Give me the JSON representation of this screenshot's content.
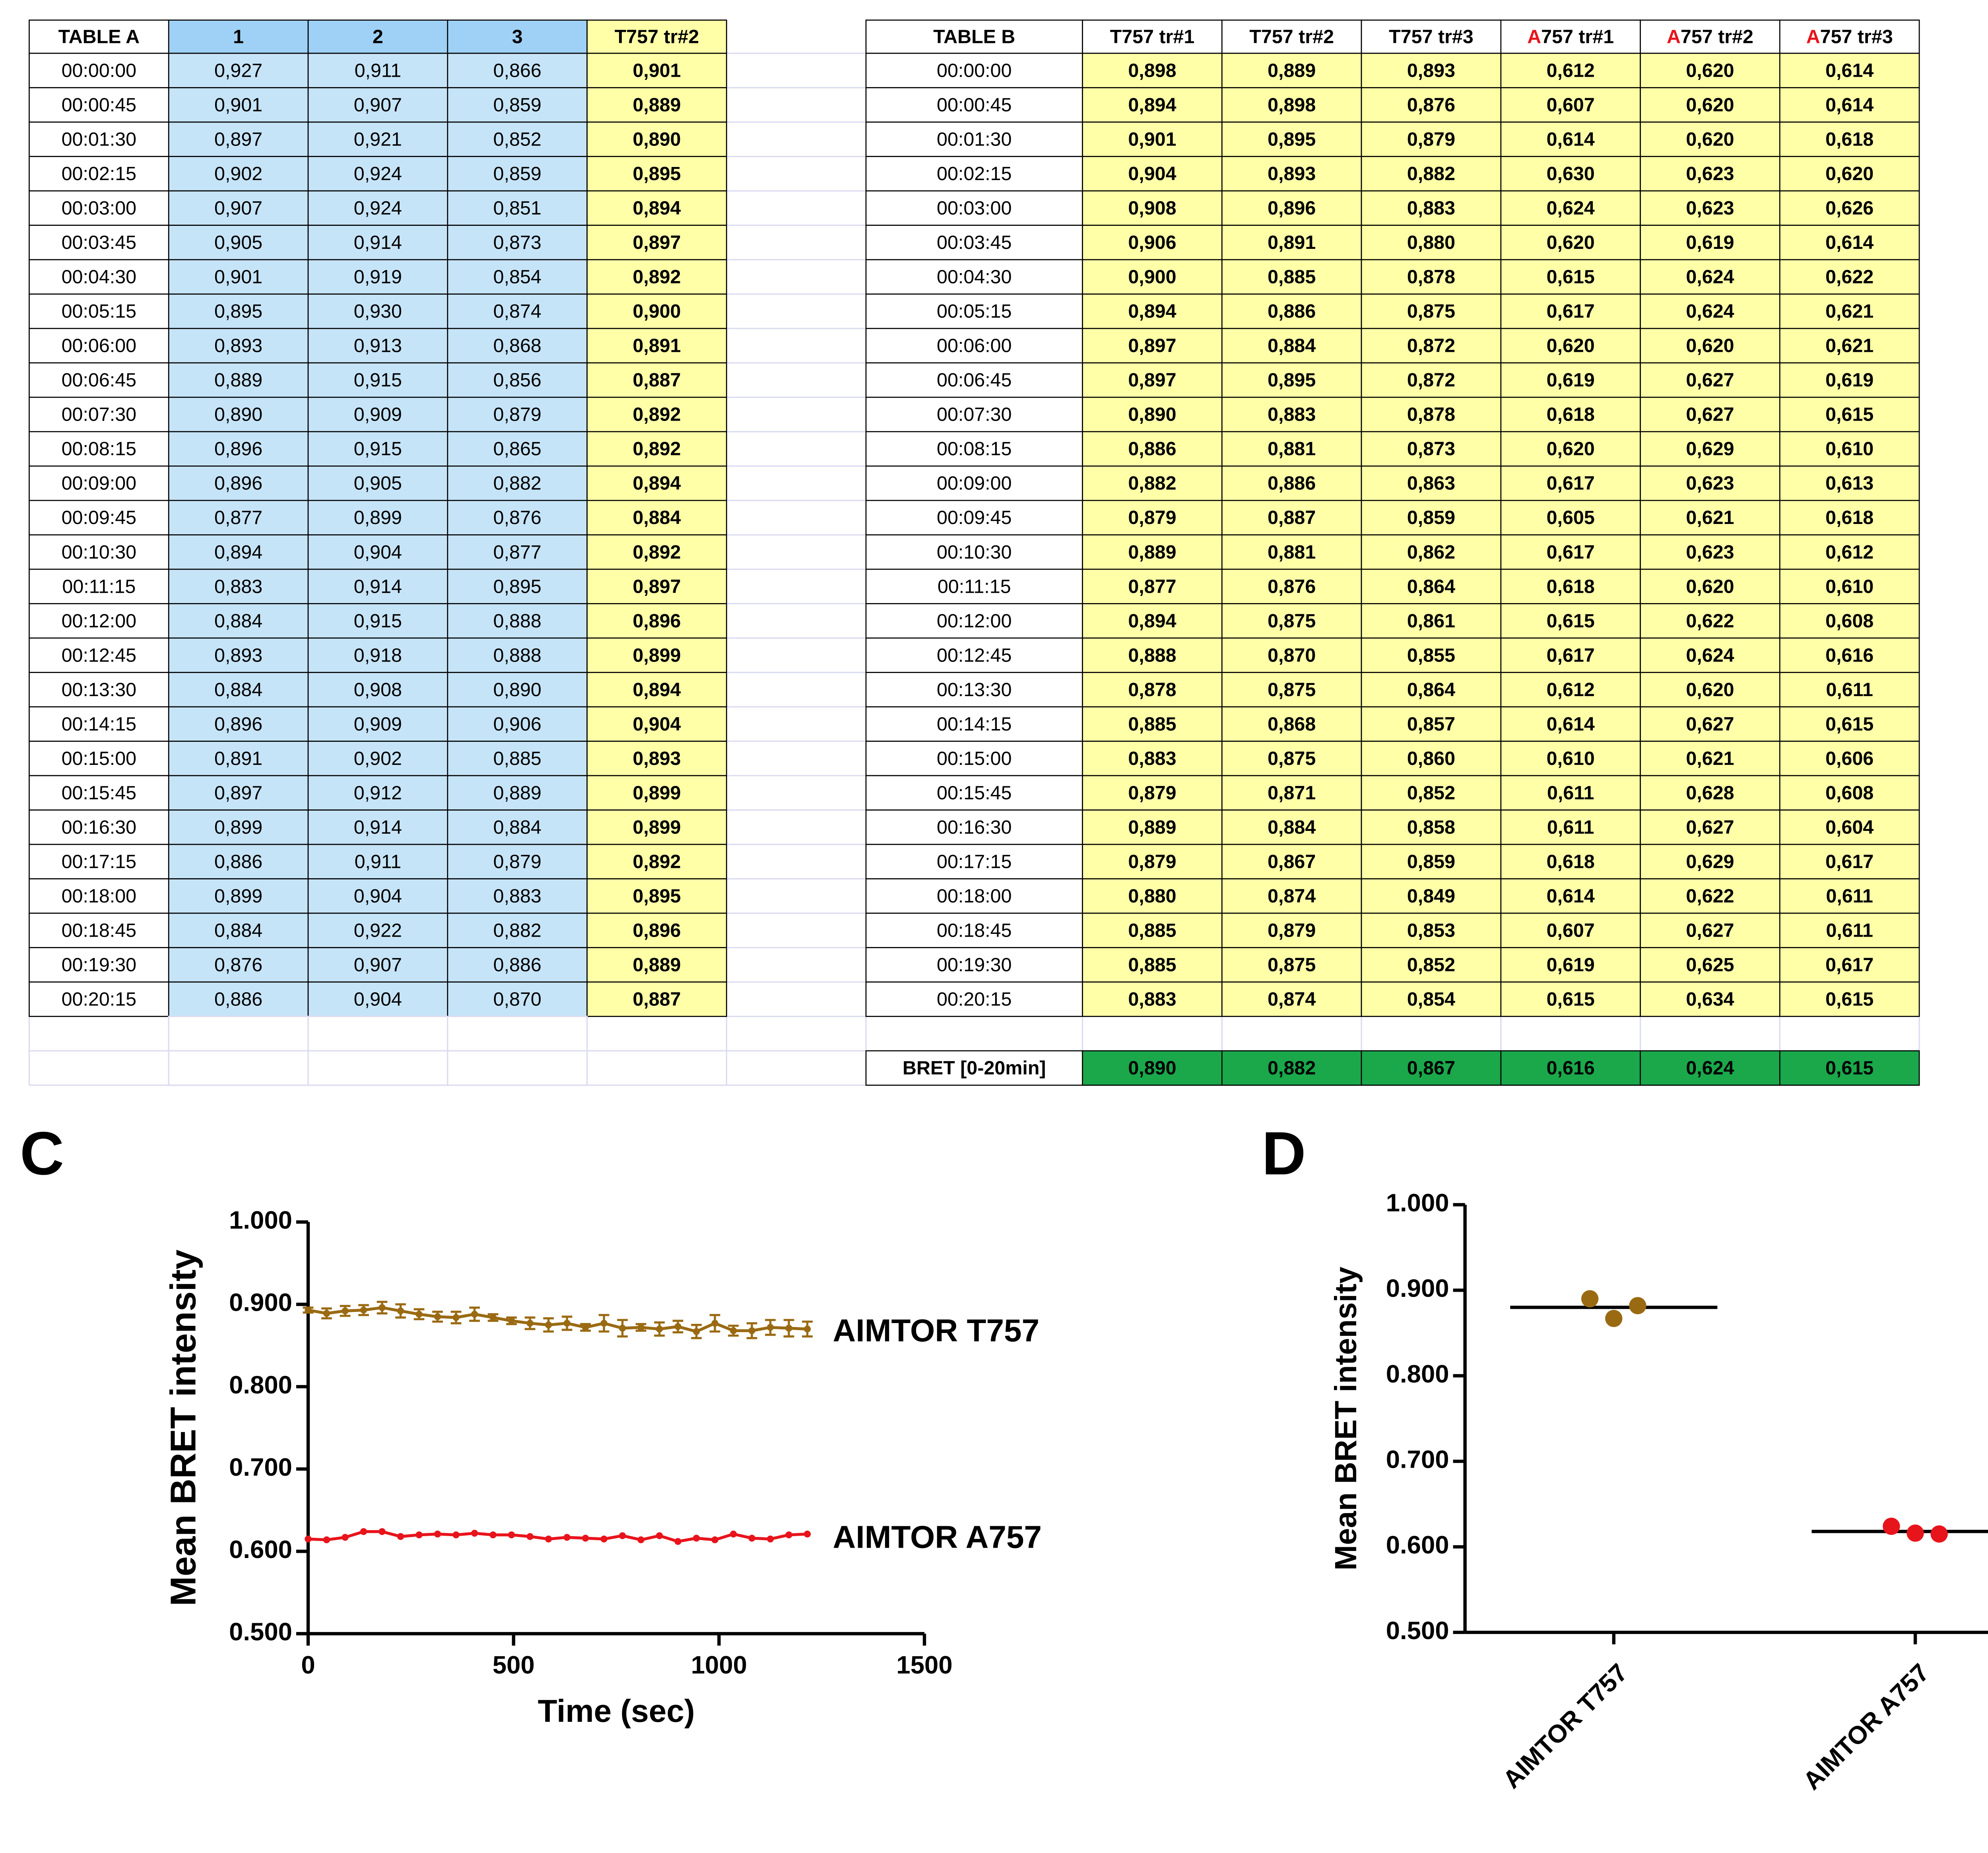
{
  "table_a": {
    "header": [
      "TABLE A",
      "1",
      "2",
      "3",
      "T757 tr#2"
    ],
    "rows": [
      [
        "00:00:00",
        "0,927",
        "0,911",
        "0,866",
        "0,901"
      ],
      [
        "00:00:45",
        "0,901",
        "0,907",
        "0,859",
        "0,889"
      ],
      [
        "00:01:30",
        "0,897",
        "0,921",
        "0,852",
        "0,890"
      ],
      [
        "00:02:15",
        "0,902",
        "0,924",
        "0,859",
        "0,895"
      ],
      [
        "00:03:00",
        "0,907",
        "0,924",
        "0,851",
        "0,894"
      ],
      [
        "00:03:45",
        "0,905",
        "0,914",
        "0,873",
        "0,897"
      ],
      [
        "00:04:30",
        "0,901",
        "0,919",
        "0,854",
        "0,892"
      ],
      [
        "00:05:15",
        "0,895",
        "0,930",
        "0,874",
        "0,900"
      ],
      [
        "00:06:00",
        "0,893",
        "0,913",
        "0,868",
        "0,891"
      ],
      [
        "00:06:45",
        "0,889",
        "0,915",
        "0,856",
        "0,887"
      ],
      [
        "00:07:30",
        "0,890",
        "0,909",
        "0,879",
        "0,892"
      ],
      [
        "00:08:15",
        "0,896",
        "0,915",
        "0,865",
        "0,892"
      ],
      [
        "00:09:00",
        "0,896",
        "0,905",
        "0,882",
        "0,894"
      ],
      [
        "00:09:45",
        "0,877",
        "0,899",
        "0,876",
        "0,884"
      ],
      [
        "00:10:30",
        "0,894",
        "0,904",
        "0,877",
        "0,892"
      ],
      [
        "00:11:15",
        "0,883",
        "0,914",
        "0,895",
        "0,897"
      ],
      [
        "00:12:00",
        "0,884",
        "0,915",
        "0,888",
        "0,896"
      ],
      [
        "00:12:45",
        "0,893",
        "0,918",
        "0,888",
        "0,899"
      ],
      [
        "00:13:30",
        "0,884",
        "0,908",
        "0,890",
        "0,894"
      ],
      [
        "00:14:15",
        "0,896",
        "0,909",
        "0,906",
        "0,904"
      ],
      [
        "00:15:00",
        "0,891",
        "0,902",
        "0,885",
        "0,893"
      ],
      [
        "00:15:45",
        "0,897",
        "0,912",
        "0,889",
        "0,899"
      ],
      [
        "00:16:30",
        "0,899",
        "0,914",
        "0,884",
        "0,899"
      ],
      [
        "00:17:15",
        "0,886",
        "0,911",
        "0,879",
        "0,892"
      ],
      [
        "00:18:00",
        "0,899",
        "0,904",
        "0,883",
        "0,895"
      ],
      [
        "00:18:45",
        "0,884",
        "0,922",
        "0,882",
        "0,896"
      ],
      [
        "00:19:30",
        "0,876",
        "0,907",
        "0,886",
        "0,889"
      ],
      [
        "00:20:15",
        "0,886",
        "0,904",
        "0,870",
        "0,887"
      ]
    ]
  },
  "table_b": {
    "header": [
      "TABLE B",
      "T757 tr#1",
      "T757 tr#2",
      "T757 tr#3",
      "A757 tr#1",
      "A757 tr#2",
      "A757 tr#3"
    ],
    "rows": [
      [
        "00:00:00",
        "0,898",
        "0,889",
        "0,893",
        "0,612",
        "0,620",
        "0,614"
      ],
      [
        "00:00:45",
        "0,894",
        "0,898",
        "0,876",
        "0,607",
        "0,620",
        "0,614"
      ],
      [
        "00:01:30",
        "0,901",
        "0,895",
        "0,879",
        "0,614",
        "0,620",
        "0,618"
      ],
      [
        "00:02:15",
        "0,904",
        "0,893",
        "0,882",
        "0,630",
        "0,623",
        "0,620"
      ],
      [
        "00:03:00",
        "0,908",
        "0,896",
        "0,883",
        "0,624",
        "0,623",
        "0,626"
      ],
      [
        "00:03:45",
        "0,906",
        "0,891",
        "0,880",
        "0,620",
        "0,619",
        "0,614"
      ],
      [
        "00:04:30",
        "0,900",
        "0,885",
        "0,878",
        "0,615",
        "0,624",
        "0,622"
      ],
      [
        "00:05:15",
        "0,894",
        "0,886",
        "0,875",
        "0,617",
        "0,624",
        "0,621"
      ],
      [
        "00:06:00",
        "0,897",
        "0,884",
        "0,872",
        "0,620",
        "0,620",
        "0,621"
      ],
      [
        "00:06:45",
        "0,897",
        "0,895",
        "0,872",
        "0,619",
        "0,627",
        "0,619"
      ],
      [
        "00:07:30",
        "0,890",
        "0,883",
        "0,878",
        "0,618",
        "0,627",
        "0,615"
      ],
      [
        "00:08:15",
        "0,886",
        "0,881",
        "0,873",
        "0,620",
        "0,629",
        "0,610"
      ],
      [
        "00:09:00",
        "0,882",
        "0,886",
        "0,863",
        "0,617",
        "0,623",
        "0,613"
      ],
      [
        "00:09:45",
        "0,879",
        "0,887",
        "0,859",
        "0,605",
        "0,621",
        "0,618"
      ],
      [
        "00:10:30",
        "0,889",
        "0,881",
        "0,862",
        "0,617",
        "0,623",
        "0,612"
      ],
      [
        "00:11:15",
        "0,877",
        "0,876",
        "0,864",
        "0,618",
        "0,620",
        "0,610"
      ],
      [
        "00:12:00",
        "0,894",
        "0,875",
        "0,861",
        "0,615",
        "0,622",
        "0,608"
      ],
      [
        "00:12:45",
        "0,888",
        "0,870",
        "0,855",
        "0,617",
        "0,624",
        "0,616"
      ],
      [
        "00:13:30",
        "0,878",
        "0,875",
        "0,864",
        "0,612",
        "0,620",
        "0,611"
      ],
      [
        "00:14:15",
        "0,885",
        "0,868",
        "0,857",
        "0,614",
        "0,627",
        "0,615"
      ],
      [
        "00:15:00",
        "0,883",
        "0,875",
        "0,860",
        "0,610",
        "0,621",
        "0,606"
      ],
      [
        "00:15:45",
        "0,879",
        "0,871",
        "0,852",
        "0,611",
        "0,628",
        "0,608"
      ],
      [
        "00:16:30",
        "0,889",
        "0,884",
        "0,858",
        "0,611",
        "0,627",
        "0,604"
      ],
      [
        "00:17:15",
        "0,879",
        "0,867",
        "0,859",
        "0,618",
        "0,629",
        "0,617"
      ],
      [
        "00:18:00",
        "0,880",
        "0,874",
        "0,849",
        "0,614",
        "0,622",
        "0,611"
      ],
      [
        "00:18:45",
        "0,885",
        "0,879",
        "0,853",
        "0,607",
        "0,627",
        "0,611"
      ],
      [
        "00:19:30",
        "0,885",
        "0,875",
        "0,852",
        "0,619",
        "0,625",
        "0,617"
      ],
      [
        "00:20:15",
        "0,883",
        "0,874",
        "0,854",
        "0,615",
        "0,634",
        "0,615"
      ]
    ],
    "footer": [
      "BRET [0-20min]",
      "0,890",
      "0,882",
      "0,867",
      "0,616",
      "0,624",
      "0,615"
    ]
  },
  "chart_data": [
    {
      "type": "line",
      "label": "C",
      "x_label": "Time (sec)",
      "y_label": "Mean BRET intensity",
      "x": [
        0,
        45,
        90,
        135,
        180,
        225,
        270,
        315,
        360,
        405,
        450,
        495,
        540,
        585,
        630,
        675,
        720,
        765,
        810,
        855,
        900,
        945,
        990,
        1035,
        1080,
        1125,
        1170,
        1215
      ],
      "xlim": [
        0,
        1500
      ],
      "xticks": [
        0,
        500,
        1000,
        1500
      ],
      "ylim": [
        0.5,
        1.0
      ],
      "yticks": [
        {
          "value": 0.5,
          "label": "0.500"
        },
        {
          "value": 0.6,
          "label": "0.600"
        },
        {
          "value": 0.7,
          "label": "0.700"
        },
        {
          "value": 0.8,
          "label": "0.800"
        },
        {
          "value": 0.9,
          "label": "0.900"
        },
        {
          "value": 1.0,
          "label": "1.000"
        }
      ],
      "series": [
        {
          "name": "AIMTOR T757",
          "color": "#9a6a12",
          "values": [
            0.893,
            0.889,
            0.892,
            0.893,
            0.896,
            0.892,
            0.888,
            0.885,
            0.884,
            0.888,
            0.884,
            0.88,
            0.877,
            0.875,
            0.877,
            0.872,
            0.877,
            0.871,
            0.872,
            0.87,
            0.873,
            0.867,
            0.877,
            0.868,
            0.868,
            0.872,
            0.871,
            0.87
          ],
          "errors": [
            0.003,
            0.006,
            0.006,
            0.006,
            0.007,
            0.008,
            0.006,
            0.006,
            0.007,
            0.008,
            0.004,
            0.004,
            0.007,
            0.008,
            0.008,
            0.004,
            0.01,
            0.01,
            0.004,
            0.008,
            0.007,
            0.008,
            0.01,
            0.006,
            0.009,
            0.009,
            0.01,
            0.009
          ]
        },
        {
          "name": "AIMTOR A757",
          "color": "#e8141c",
          "values": [
            0.615,
            0.614,
            0.617,
            0.624,
            0.624,
            0.618,
            0.62,
            0.621,
            0.62,
            0.622,
            0.62,
            0.62,
            0.618,
            0.615,
            0.617,
            0.616,
            0.615,
            0.619,
            0.614,
            0.619,
            0.612,
            0.616,
            0.614,
            0.621,
            0.616,
            0.615,
            0.62,
            0.621
          ]
        }
      ]
    },
    {
      "type": "dot",
      "label": "D",
      "y_label": "Mean BRET intensity",
      "categories": [
        "AIMTOR T757",
        "AIMTOR A757"
      ],
      "colors": [
        "#9a6a12",
        "#e8141c"
      ],
      "points": [
        [
          0.89,
          0.867,
          0.882
        ],
        [
          0.624,
          0.616,
          0.615
        ]
      ],
      "means": [
        0.88,
        0.618
      ],
      "ylim": [
        0.5,
        1.0
      ],
      "yticks": [
        {
          "value": 0.5,
          "label": "0.500"
        },
        {
          "value": 0.6,
          "label": "0.600"
        },
        {
          "value": 0.7,
          "label": "0.700"
        },
        {
          "value": 0.8,
          "label": "0.800"
        },
        {
          "value": 0.9,
          "label": "0.900"
        },
        {
          "value": 1.0,
          "label": "1.000"
        }
      ]
    }
  ]
}
